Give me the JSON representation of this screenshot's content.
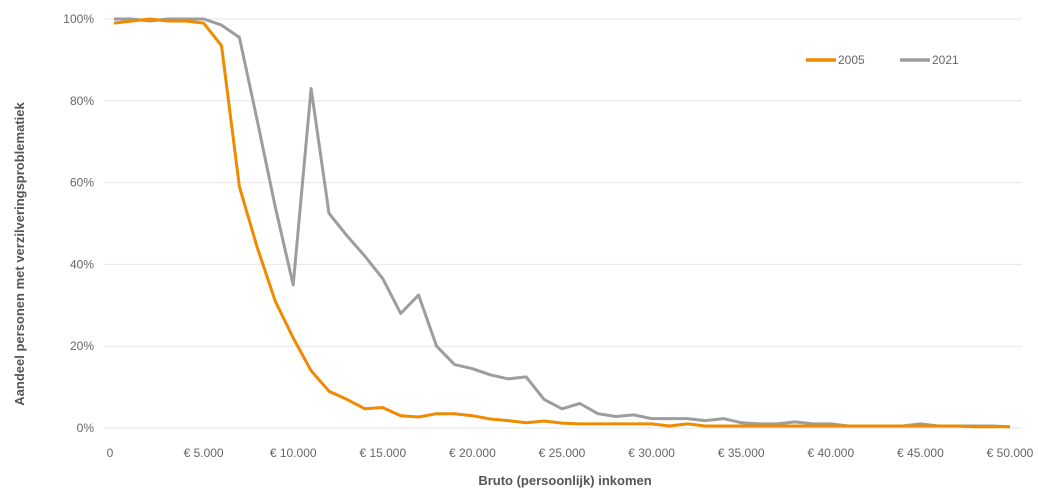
{
  "chart_data": {
    "type": "line",
    "xlabel": "Bruto (persoonlijk) inkomen",
    "ylabel": "Aandeel personen met verzilveringsproblematiek",
    "xlim": [
      0,
      50000
    ],
    "ylim": [
      0,
      100
    ],
    "x_tick_labels": [
      "0",
      "€ 5.000",
      "€ 10.000",
      "€ 15.000",
      "€ 20.000",
      "€ 25.000",
      "€ 30.000",
      "€ 35.000",
      "€ 40.000",
      "€ 45.000",
      "€ 50.000"
    ],
    "x_tick_values": [
      0,
      5000,
      10000,
      15000,
      20000,
      25000,
      30000,
      35000,
      40000,
      45000,
      50000
    ],
    "y_tick_labels": [
      "0%",
      "20%",
      "40%",
      "60%",
      "80%",
      "100%"
    ],
    "y_tick_values": [
      0,
      20,
      40,
      60,
      80,
      100
    ],
    "grid": true,
    "legend_position": "top-right",
    "colors": {
      "2005": "#f08a00",
      "2021": "#9d9d9d"
    },
    "x": [
      0,
      1000,
      2000,
      3000,
      4000,
      5000,
      6000,
      7000,
      8000,
      9000,
      10000,
      11000,
      12000,
      13000,
      14000,
      15000,
      16000,
      17000,
      18000,
      19000,
      20000,
      21000,
      22000,
      23000,
      24000,
      25000,
      26000,
      27000,
      28000,
      29000,
      30000,
      31000,
      32000,
      33000,
      34000,
      35000,
      36000,
      37000,
      38000,
      39000,
      40000,
      41000,
      42000,
      43000,
      44000,
      45000,
      46000,
      47000,
      48000,
      49000,
      50000
    ],
    "series": [
      {
        "name": "2005",
        "values": [
          99,
          99.5,
          100,
          99.5,
          99.5,
          99,
          93.5,
          59,
          44,
          31,
          22,
          14,
          9,
          7,
          4.7,
          5,
          3,
          2.7,
          3.5,
          3.5,
          3,
          2.2,
          1.8,
          1.3,
          1.7,
          1.2,
          1,
          1,
          1,
          1,
          1,
          0.5,
          1,
          0.5,
          0.5,
          0.5,
          0.5,
          0.5,
          0.5,
          0.5,
          0.5,
          0.5,
          0.5,
          0.5,
          0.5,
          0.5,
          0.5,
          0.5,
          0.3,
          0.3,
          0.3
        ]
      },
      {
        "name": "2021",
        "values": [
          100,
          100,
          99.5,
          100,
          100,
          100,
          98.5,
          95.5,
          75,
          54,
          35,
          83,
          52.5,
          47,
          42,
          36.5,
          28,
          32.5,
          20,
          15.5,
          14.5,
          13,
          12,
          12.5,
          7,
          4.7,
          6,
          3.5,
          2.8,
          3.2,
          2.3,
          2.3,
          2.3,
          1.8,
          2.3,
          1.3,
          1,
          1,
          1.5,
          1,
          1,
          0.5,
          0.5,
          0.5,
          0.5,
          1,
          0.5,
          0.5,
          0.5,
          0.5,
          0.3
        ]
      }
    ]
  }
}
